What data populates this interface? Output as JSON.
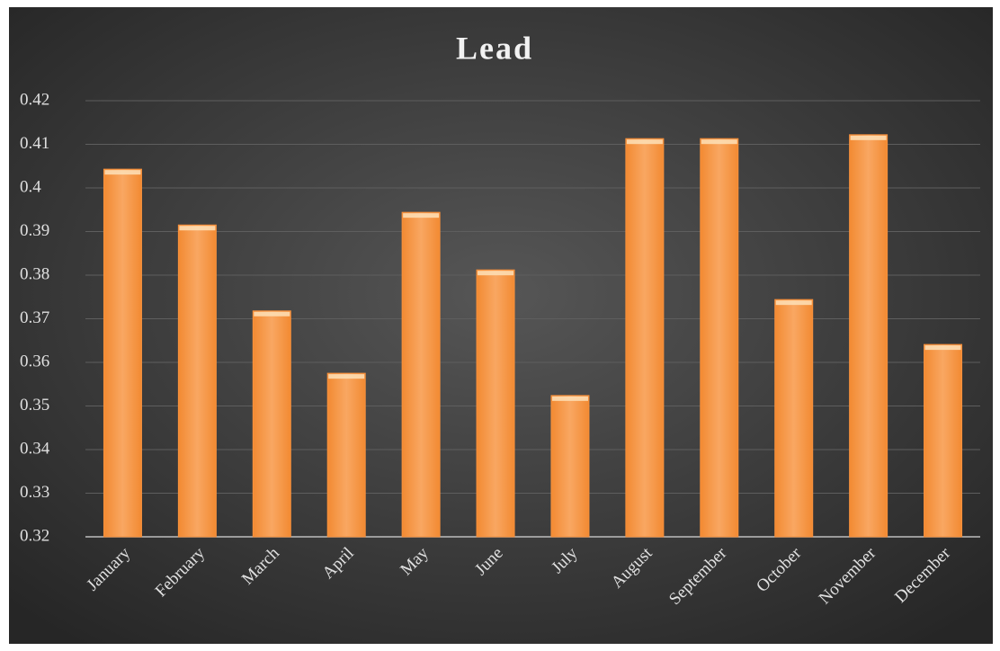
{
  "chart_data": {
    "type": "bar",
    "title": "Lead",
    "categories": [
      "January",
      "February",
      "March",
      "April",
      "May",
      "June",
      "July",
      "August",
      "September",
      "October",
      "November",
      "December"
    ],
    "values": [
      0.4043,
      0.3915,
      0.3718,
      0.3575,
      0.3944,
      0.3812,
      0.3524,
      0.4113,
      0.4113,
      0.3744,
      0.4122,
      0.3641
    ],
    "color": "#f7913d",
    "ylim": [
      0.32,
      0.42
    ],
    "yticks": [
      0.32,
      0.33,
      0.34,
      0.35,
      0.36,
      0.37,
      0.38,
      0.39,
      0.4,
      0.41,
      0.42
    ],
    "grid": true
  }
}
